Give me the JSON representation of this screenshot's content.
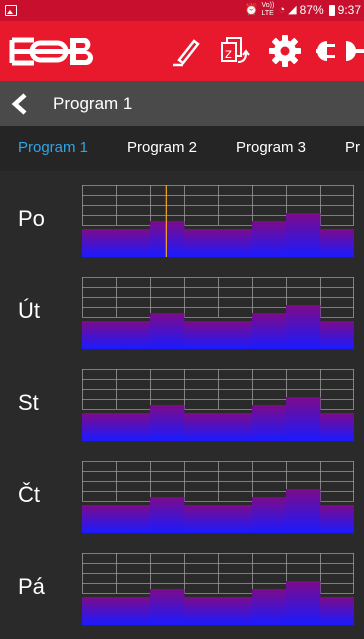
{
  "status_bar": {
    "icons": [
      "image-icon",
      "alarm-icon",
      "volte-icon",
      "wifi-icon",
      "signal-icon",
      "battery-icon"
    ],
    "volte": "Vo)) LTE",
    "battery": "87%",
    "time": "9:37"
  },
  "toolbar": {
    "brand_color": "#e8192c",
    "icons": [
      "logo-icon",
      "edit-icon",
      "copy-icon",
      "gear-icon",
      "plug-icon"
    ]
  },
  "subheader": {
    "title": "Program 1"
  },
  "tabs": [
    {
      "label": "Program 1",
      "active": true
    },
    {
      "label": "Program 2",
      "active": false
    },
    {
      "label": "Program 3",
      "active": false
    },
    {
      "label": "Pr",
      "active": false
    }
  ],
  "colors": {
    "tab_active": "#2fa4e7",
    "bar_top": "#7d0a8a",
    "bar_bottom": "#1a1aff",
    "marker": "#f5a623"
  },
  "days": [
    {
      "label": "Po",
      "levels": [
        1,
        1,
        2,
        1,
        1,
        2,
        3,
        1
      ],
      "marker": 0.31
    },
    {
      "label": "Út",
      "levels": [
        1,
        1,
        2,
        1,
        1,
        2,
        3,
        1
      ],
      "marker": null
    },
    {
      "label": "St",
      "levels": [
        1,
        1,
        2,
        1,
        1,
        2,
        3,
        1
      ],
      "marker": null
    },
    {
      "label": "Čt",
      "levels": [
        1,
        1,
        2,
        1,
        1,
        2,
        3,
        1
      ],
      "marker": null
    },
    {
      "label": "Pá",
      "levels": [
        1,
        1,
        2,
        1,
        1,
        2,
        3,
        1
      ],
      "marker": null
    }
  ]
}
